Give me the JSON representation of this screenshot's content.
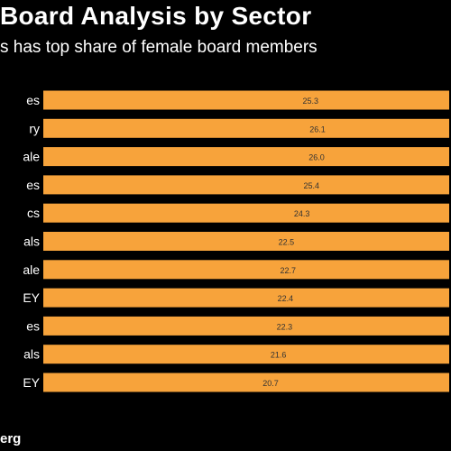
{
  "header": {
    "title": "Board Analysis by Sector",
    "subtitle": "s has top share of female board members"
  },
  "footer": {
    "source": "erg"
  },
  "colors": {
    "background": "#000000",
    "bar": "#f7a33b",
    "text": "#ffffff",
    "value_label": "#333333"
  },
  "chart_data": {
    "type": "bar",
    "orientation": "horizontal",
    "categories": [
      "es",
      "ry",
      "ale",
      "es",
      "cs",
      "als",
      "ale",
      "EY",
      "es",
      "als",
      "EY"
    ],
    "values": [
      25.3,
      26.1,
      26.0,
      25.4,
      24.3,
      22.5,
      22.7,
      22.4,
      22.3,
      21.6,
      20.7
    ],
    "value_labels": [
      "25.3",
      "26.1",
      "26.0",
      "25.4",
      "24.3",
      "22.5",
      "22.7",
      "22.4",
      "22.3",
      "21.6",
      "20.7"
    ],
    "title": "",
    "xlabel": "",
    "ylabel": "",
    "grid": false,
    "legend": "none"
  }
}
